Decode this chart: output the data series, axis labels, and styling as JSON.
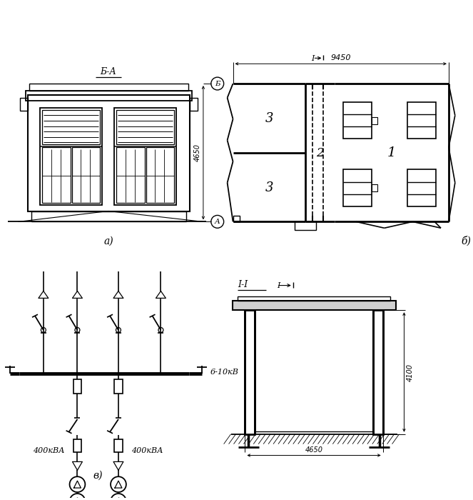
{
  "bg_color": "#ffffff",
  "line_color": "#000000",
  "label_a": "а)",
  "label_b": "б)",
  "label_v": "в)",
  "section_BA": "Б-А",
  "section_II_label": "І-І",
  "section_I_ref": "І",
  "dim_9450": "9450",
  "dim_4650": "4650",
  "dim_4100": "4100",
  "label_1": "1",
  "label_2": "2",
  "label_3": "3",
  "label_A": "А",
  "label_B": "Б",
  "label_6_10kv": "6-10кВ",
  "label_400kva": "400кВА"
}
